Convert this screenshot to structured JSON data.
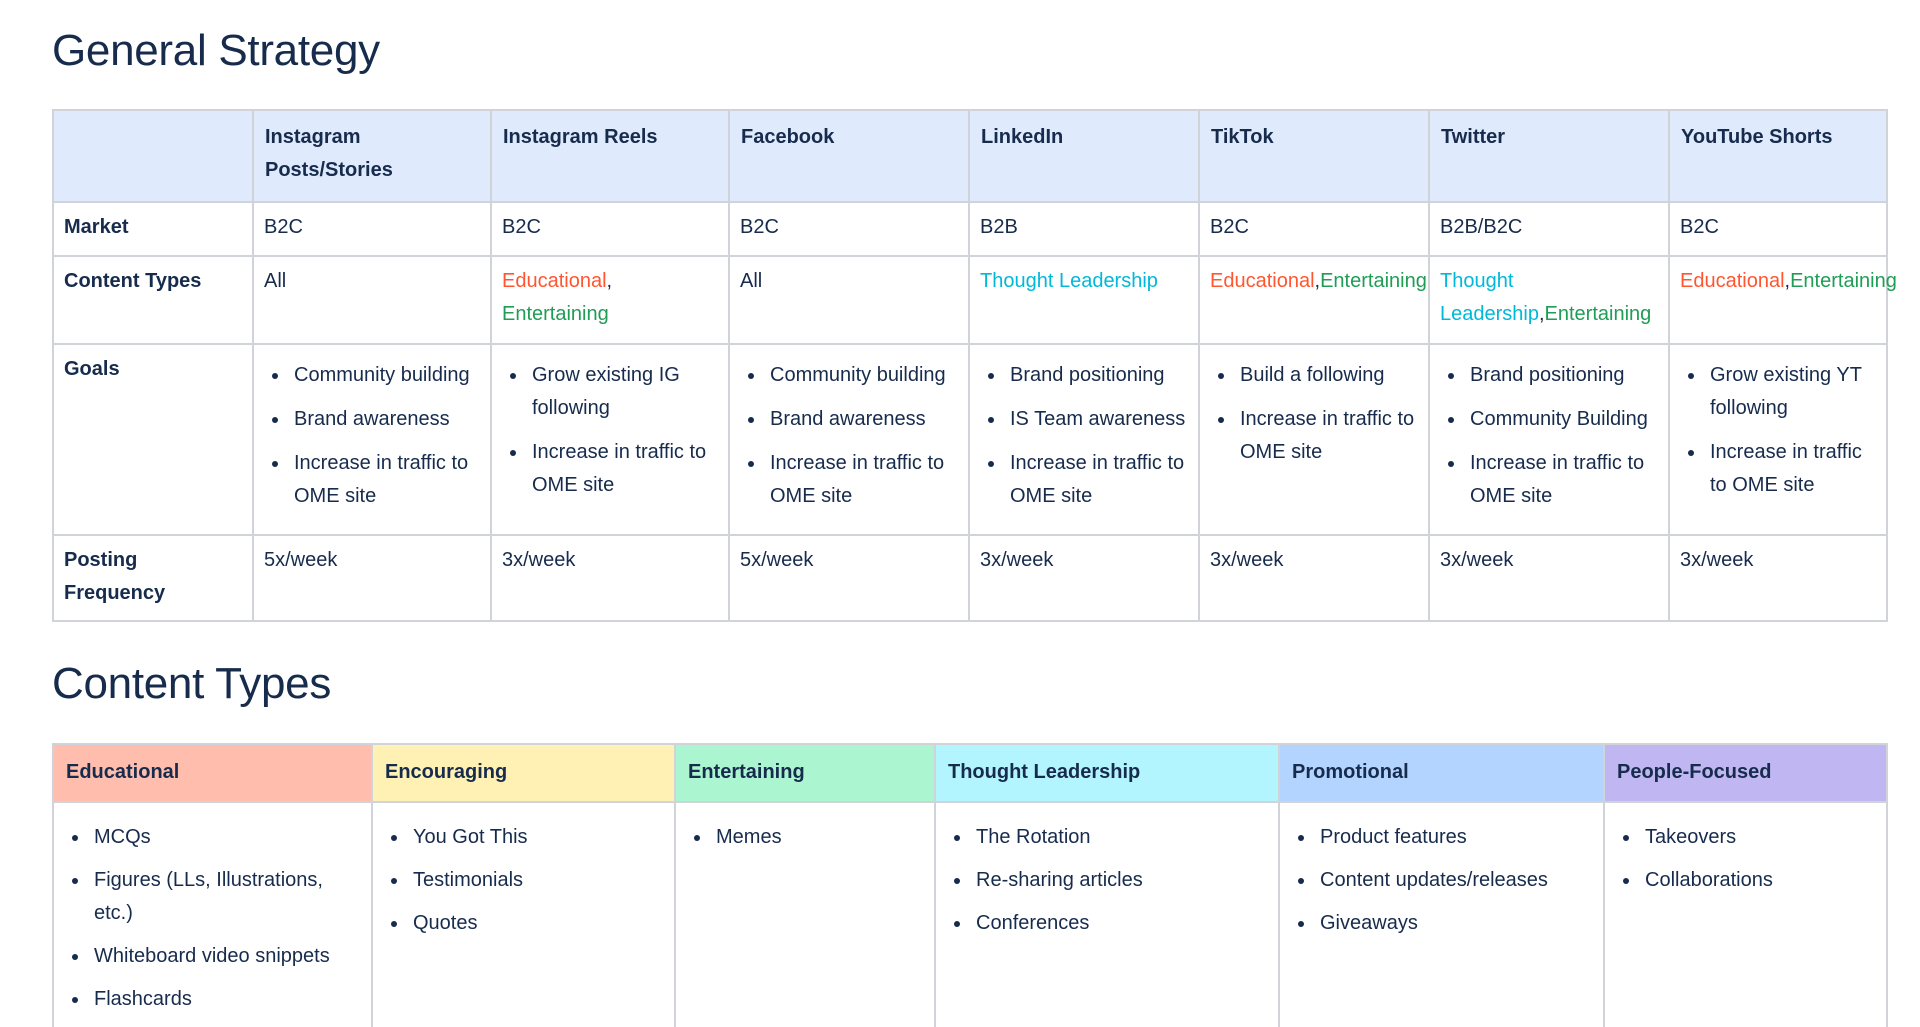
{
  "strategy": {
    "heading": "General Strategy",
    "platforms": [
      "Instagram Posts/Stories",
      "Instagram Reels",
      "Facebook",
      "LinkedIn",
      "TikTok",
      "Twitter",
      "YouTube Shorts"
    ],
    "row_labels": {
      "market": "Market",
      "content_types": "Content Types",
      "goals": "Goals",
      "posting_frequency": "Posting Frequency"
    },
    "market": [
      "B2C",
      "B2C",
      "B2C",
      "B2B",
      "B2C",
      "B2B/B2C",
      "B2C"
    ],
    "content_types": [
      [
        {
          "text": "All",
          "kind": "plain"
        }
      ],
      [
        {
          "text": "Educational",
          "kind": "educational"
        },
        {
          "text": ", ",
          "kind": "plain"
        },
        {
          "text": "Entertaining",
          "kind": "entertaining"
        }
      ],
      [
        {
          "text": "All",
          "kind": "plain"
        }
      ],
      [
        {
          "text": "Thought Leadership",
          "kind": "thought-leadership"
        }
      ],
      [
        {
          "text": "Educational",
          "kind": "educational"
        },
        {
          "text": ",",
          "kind": "plain"
        },
        {
          "text": "Entertaining",
          "kind": "entertaining"
        }
      ],
      [
        {
          "text": "Thought Leadership",
          "kind": "thought-leadership"
        },
        {
          "text": ",",
          "kind": "plain"
        },
        {
          "text": "Entertaining",
          "kind": "entertaining"
        }
      ],
      [
        {
          "text": "Educational",
          "kind": "educational"
        },
        {
          "text": ",",
          "kind": "plain"
        },
        {
          "text": "Entertaining",
          "kind": "entertaining"
        }
      ]
    ],
    "goals": [
      [
        "Community building",
        "Brand awareness",
        "Increase in traffic to OME site"
      ],
      [
        "Grow existing IG following",
        "Increase in traffic to OME site"
      ],
      [
        "Community building",
        "Brand awareness",
        "Increase in traffic to OME site"
      ],
      [
        "Brand positioning",
        "IS Team awareness",
        "Increase in traffic to OME site"
      ],
      [
        "Build a following",
        "Increase in traffic to OME site"
      ],
      [
        "Brand positioning",
        "Community Building",
        "Increase in traffic to OME site"
      ],
      [
        "Grow existing YT following",
        "Increase in traffic to OME site"
      ]
    ],
    "posting_frequency": [
      "5x/week",
      "3x/week",
      "5x/week",
      "3x/week",
      "3x/week",
      "3x/week",
      "3x/week"
    ]
  },
  "content_types": {
    "heading": "Content Types",
    "categories": [
      {
        "title": "Educational",
        "color": "#ffbdad",
        "items": [
          "MCQs",
          "Figures (LLs, Illustrations, etc.)",
          "Whiteboard video snippets",
          "Flashcards"
        ]
      },
      {
        "title": "Encouraging",
        "color": "#fff0b3",
        "items": [
          "You Got This",
          "Testimonials",
          "Quotes"
        ]
      },
      {
        "title": "Entertaining",
        "color": "#abf5d1",
        "items": [
          "Memes"
        ]
      },
      {
        "title": "Thought Leadership",
        "color": "#b3f5ff",
        "items": [
          "The Rotation",
          "Re-sharing articles",
          "Conferences"
        ]
      },
      {
        "title": "Promotional",
        "color": "#b3d4ff",
        "items": [
          "Product features",
          "Content updates/releases",
          "Giveaways"
        ]
      },
      {
        "title": "People-Focused",
        "color": "#c0b6f2",
        "items": [
          "Takeovers",
          "Collaborations"
        ]
      }
    ]
  },
  "colors": {
    "educational": "#ff5630",
    "entertaining": "#1f9d55",
    "thought_leadership": "#00b8d9",
    "header_bg": "#dfeafc",
    "text": "#172b4d"
  }
}
